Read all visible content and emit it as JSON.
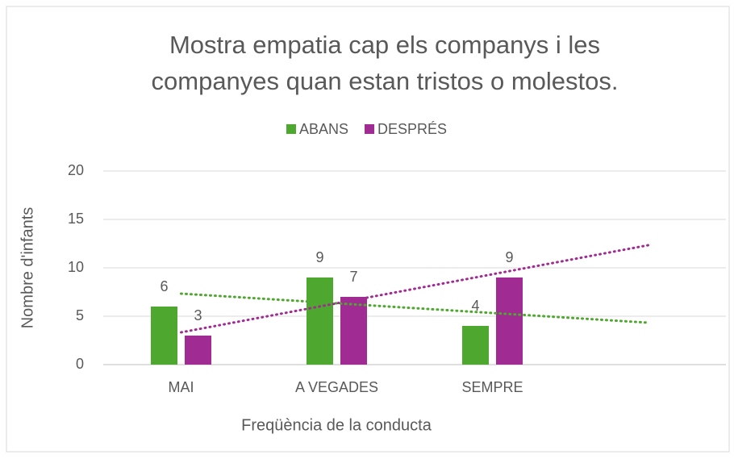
{
  "chart_data": {
    "type": "bar",
    "title": [
      "Mostra empatia cap els companys i les",
      "companyes quan estan tristos o molestos."
    ],
    "x_label": "Freqüència de la conducta",
    "y_label": "Nombre d'infants",
    "categories": [
      "MAI",
      "A VEGADES",
      "SEMPRE",
      null
    ],
    "series": [
      {
        "name": "ABANS",
        "color": "#4ea72e",
        "values": [
          6,
          9,
          4,
          null
        ]
      },
      {
        "name": "DESPRÉS",
        "color": "#a02b93",
        "values": [
          3,
          7,
          9,
          null
        ]
      }
    ],
    "ylim": [
      0,
      20
    ],
    "yticks": [
      0,
      5,
      10,
      15,
      20
    ],
    "grid": true,
    "legend": "top",
    "data_labels": true,
    "trendline": "linear"
  }
}
